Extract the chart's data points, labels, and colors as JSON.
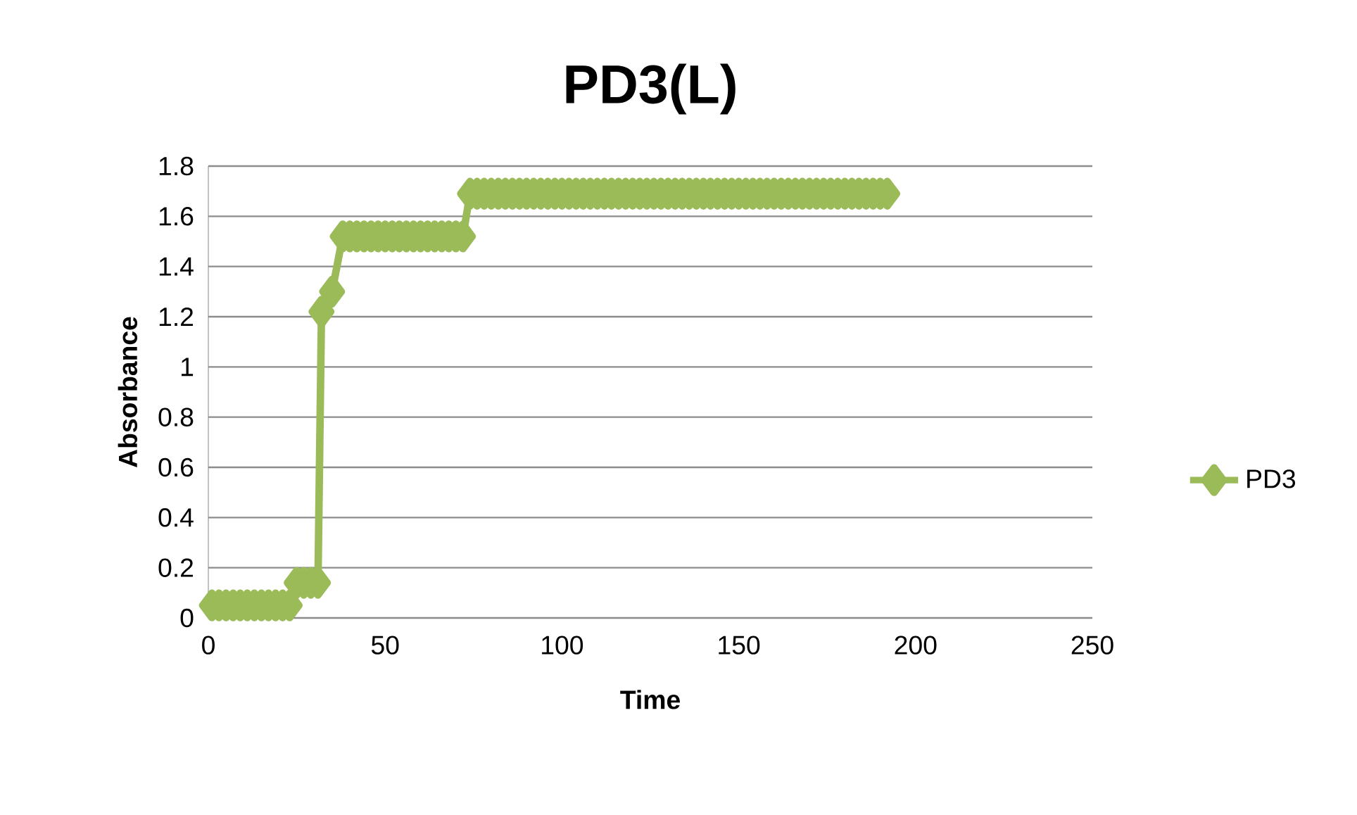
{
  "chart_data": {
    "type": "line",
    "title": "PD3(L)",
    "xlabel": "Time",
    "ylabel": "Absorbance",
    "xlim": [
      0,
      250
    ],
    "xticks": [
      0,
      50,
      100,
      150,
      200,
      250
    ],
    "ylim": [
      0,
      1.8
    ],
    "yticks": [
      0,
      0.2,
      0.4,
      0.6,
      0.8,
      1,
      1.2,
      1.4,
      1.6,
      1.8
    ],
    "grid": "y",
    "legend": "right",
    "marker": "diamond",
    "line_style": "solid",
    "series": [
      {
        "name": "PD3",
        "color": "#9bbb59",
        "x": [
          1,
          3,
          5,
          7,
          9,
          11,
          13,
          15,
          17,
          19,
          21,
          23,
          25,
          27,
          29,
          31,
          32,
          35,
          38,
          40,
          42,
          44,
          46,
          48,
          50,
          52,
          54,
          56,
          58,
          60,
          62,
          64,
          66,
          68,
          70,
          72,
          74,
          76,
          78,
          80,
          82,
          84,
          86,
          88,
          90,
          92,
          94,
          96,
          98,
          100,
          102,
          104,
          106,
          108,
          110,
          112,
          114,
          116,
          118,
          120,
          122,
          124,
          126,
          128,
          130,
          132,
          134,
          136,
          138,
          140,
          142,
          144,
          146,
          148,
          150,
          152,
          154,
          156,
          158,
          160,
          162,
          164,
          166,
          168,
          170,
          172,
          174,
          176,
          178,
          180,
          182,
          184,
          186,
          188,
          190,
          192
        ],
        "values": [
          0.05,
          0.05,
          0.05,
          0.05,
          0.05,
          0.05,
          0.05,
          0.05,
          0.05,
          0.05,
          0.05,
          0.05,
          0.14,
          0.14,
          0.14,
          0.14,
          1.22,
          1.3,
          1.52,
          1.52,
          1.52,
          1.52,
          1.52,
          1.52,
          1.52,
          1.52,
          1.52,
          1.52,
          1.52,
          1.52,
          1.52,
          1.52,
          1.52,
          1.52,
          1.52,
          1.52,
          1.69,
          1.69,
          1.69,
          1.69,
          1.69,
          1.69,
          1.69,
          1.69,
          1.69,
          1.69,
          1.69,
          1.69,
          1.69,
          1.69,
          1.69,
          1.69,
          1.69,
          1.69,
          1.69,
          1.69,
          1.69,
          1.69,
          1.69,
          1.69,
          1.69,
          1.69,
          1.69,
          1.69,
          1.69,
          1.69,
          1.69,
          1.69,
          1.69,
          1.69,
          1.69,
          1.69,
          1.69,
          1.69,
          1.69,
          1.69,
          1.69,
          1.69,
          1.69,
          1.69,
          1.69,
          1.69,
          1.69,
          1.69,
          1.69,
          1.69,
          1.69,
          1.69,
          1.69,
          1.69,
          1.69,
          1.69,
          1.69,
          1.69,
          1.69,
          1.69
        ]
      }
    ]
  }
}
